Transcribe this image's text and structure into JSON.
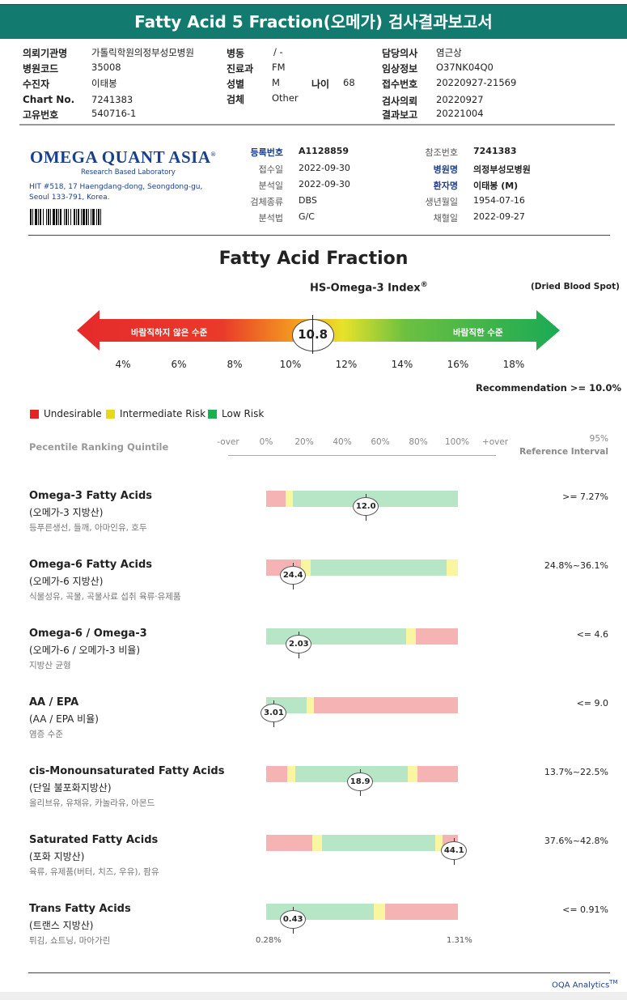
{
  "title": "Fatty Acid 5 Fraction(오메가) 검사결과보고서",
  "patient_info": {
    "hospital_name_label": "의뢰기관명",
    "hospital_name": "가톨릭학원의정부성모병원",
    "hospital_code_label": "병원코드",
    "hospital_code": "35008",
    "patient_label": "수진자",
    "patient": "이태봉",
    "chart_no_label": "Chart No.",
    "chart_no": "7241383",
    "unique_no_label": "고유번호",
    "unique_no": "540716-1",
    "ward_label": "병동",
    "ward": "/ -",
    "dept_label": "진료과",
    "dept": "FM",
    "sex_label": "성별",
    "sex": "M",
    "age_label": "나이",
    "age": "68",
    "specimen_label": "검체",
    "specimen": "Other",
    "doctor_label": "담당의사",
    "doctor": "염근상",
    "clinical_label": "임상정보",
    "clinical": "O37NK04Q0",
    "receipt_no_label": "접수번호",
    "receipt_no": "20220927-21569",
    "request_date_label": "검사의뢰",
    "request_date": "20220927",
    "report_date_label": "결과보고",
    "report_date": "20221004"
  },
  "lab": {
    "logo_text": "OMEGA QUANT ASIA",
    "logo_reg": "®",
    "tagline": "Research Based Laboratory",
    "address1": "HIT #518, 17 Haengdang-dong, Seongdong-gu,",
    "address2": "Seoul 133-791, Korea."
  },
  "specimen_info": {
    "reg_no_label": "등록번호",
    "reg_no": "A1128859",
    "received_label": "접수일",
    "received": "2022-09-30",
    "analyzed_label": "분석일",
    "analyzed": "2022-09-30",
    "specimen_type_label": "검체종류",
    "specimen_type": "DBS",
    "method_label": "분석법",
    "method": "G/C",
    "ref_no_label": "참조번호",
    "ref_no": "7241383",
    "hospital_label": "병원명",
    "hospital": "의정부성모병원",
    "patient_label": "환자명",
    "patient": "이태봉 (M)",
    "dob_label": "생년월일",
    "dob": "1954-07-16",
    "collected_label": "채혈일",
    "collected": "2022-09-27"
  },
  "section_title": "Fatty Acid Fraction",
  "hs_omega_title": "HS-Omega-3 Index",
  "hs_omega_reg": "®",
  "dbs_note": "(Dried Blood Spot)",
  "index_arrow": {
    "left_label": "바람직하지 않은 수준",
    "right_label": "바람직한 수준",
    "value": "10.8",
    "value_num": 10.8,
    "ticks": [
      "4%",
      "6%",
      "8%",
      "10%",
      "12%",
      "14%",
      "16%",
      "18%"
    ],
    "tick_values": [
      4,
      6,
      8,
      10,
      12,
      14,
      16,
      18
    ]
  },
  "recommendation": "Recommendation  >= 10.0%",
  "legend": [
    {
      "label": "Undesirable",
      "color": "#e62323"
    },
    {
      "label": "Intermediate Risk",
      "color": "#e6d81a"
    },
    {
      "label": "Low Risk",
      "color": "#1aaf50"
    }
  ],
  "quintile_label": "Pecentile Ranking Quintile",
  "scale_ticks": [
    "-over",
    "0%",
    "20%",
    "40%",
    "60%",
    "80%",
    "100%",
    "+over"
  ],
  "ref_95": "95%",
  "ref_interval": "Reference Interval",
  "colors": {
    "red": "#f5b3b3",
    "yellow": "#faf5a0",
    "green": "#b6e6c5"
  },
  "rows": [
    {
      "title": "Omega-3 Fatty Acids",
      "sub": "(오메가-3 지방산)",
      "desc": "등푸른생선, 들깨, 아마인유, 호두",
      "ref": ">= 7.27%",
      "value": "12.0",
      "segments": [
        {
          "c": "red",
          "w": 0.1
        },
        {
          "c": "yellow",
          "w": 0.04
        },
        {
          "c": "green",
          "w": 0.86
        }
      ],
      "pos": 0.52
    },
    {
      "title": "Omega-6 Fatty Acids",
      "sub": "(오메가-6 지방산)",
      "desc": "식물성유, 곡물, 곡물사료 섭취 육류·유제품",
      "ref": "24.8%~36.1%",
      "value": "24.4",
      "segments": [
        {
          "c": "red",
          "w": 0.18
        },
        {
          "c": "yellow",
          "w": 0.05
        },
        {
          "c": "green",
          "w": 0.71
        },
        {
          "c": "yellow",
          "w": 0.06
        }
      ],
      "pos": 0.14
    },
    {
      "title": "Omega-6 / Omega-3",
      "sub": "(오메가-6 / 오메가-3 비율)",
      "desc": "지방산 균형",
      "ref": "<= 4.6",
      "value": "2.03",
      "segments": [
        {
          "c": "green",
          "w": 0.73
        },
        {
          "c": "yellow",
          "w": 0.05
        },
        {
          "c": "red",
          "w": 0.22
        }
      ],
      "pos": 0.17
    },
    {
      "title": "AA / EPA",
      "sub": "(AA / EPA 비율)",
      "desc": "염증 수준",
      "ref": "<= 9.0",
      "value": "3.01",
      "segments": [
        {
          "c": "green",
          "w": 0.21
        },
        {
          "c": "yellow",
          "w": 0.04
        },
        {
          "c": "red",
          "w": 0.75
        }
      ],
      "pos": 0.04
    },
    {
      "title": "cis-Monounsaturated Fatty Acids",
      "sub": "(단일 불포화지방산)",
      "desc": "올리브유, 유채유, 카놀라유, 아몬드",
      "ref": "13.7%~22.5%",
      "value": "18.9",
      "segments": [
        {
          "c": "red",
          "w": 0.11
        },
        {
          "c": "yellow",
          "w": 0.04
        },
        {
          "c": "green",
          "w": 0.59
        },
        {
          "c": "yellow",
          "w": 0.05
        },
        {
          "c": "red",
          "w": 0.21
        }
      ],
      "pos": 0.49
    },
    {
      "title": "Saturated Fatty Acids",
      "sub": "(포화 지방산)",
      "desc": "육류, 유제품(버터, 치즈, 우유), 팜유",
      "ref": "37.6%~42.8%",
      "value": "44.1",
      "segments": [
        {
          "c": "red",
          "w": 0.24
        },
        {
          "c": "yellow",
          "w": 0.05
        },
        {
          "c": "green",
          "w": 0.59
        },
        {
          "c": "yellow",
          "w": 0.04
        },
        {
          "c": "red",
          "w": 0.08
        }
      ],
      "pos": 0.98
    },
    {
      "title": "Trans Fatty Acids",
      "sub": "(트랜스 지방산)",
      "desc": "튀김, 쇼트닝, 마아가린",
      "ref": "<= 0.91%",
      "value": "0.43",
      "segments": [
        {
          "c": "green",
          "w": 0.56
        },
        {
          "c": "yellow",
          "w": 0.06
        },
        {
          "c": "red",
          "w": 0.38
        }
      ],
      "pos": 0.14
    }
  ],
  "trans_min": "0.28%",
  "trans_max": "1.31%",
  "footer_brand": "OQA Analytics",
  "footer_tm": "TM"
}
